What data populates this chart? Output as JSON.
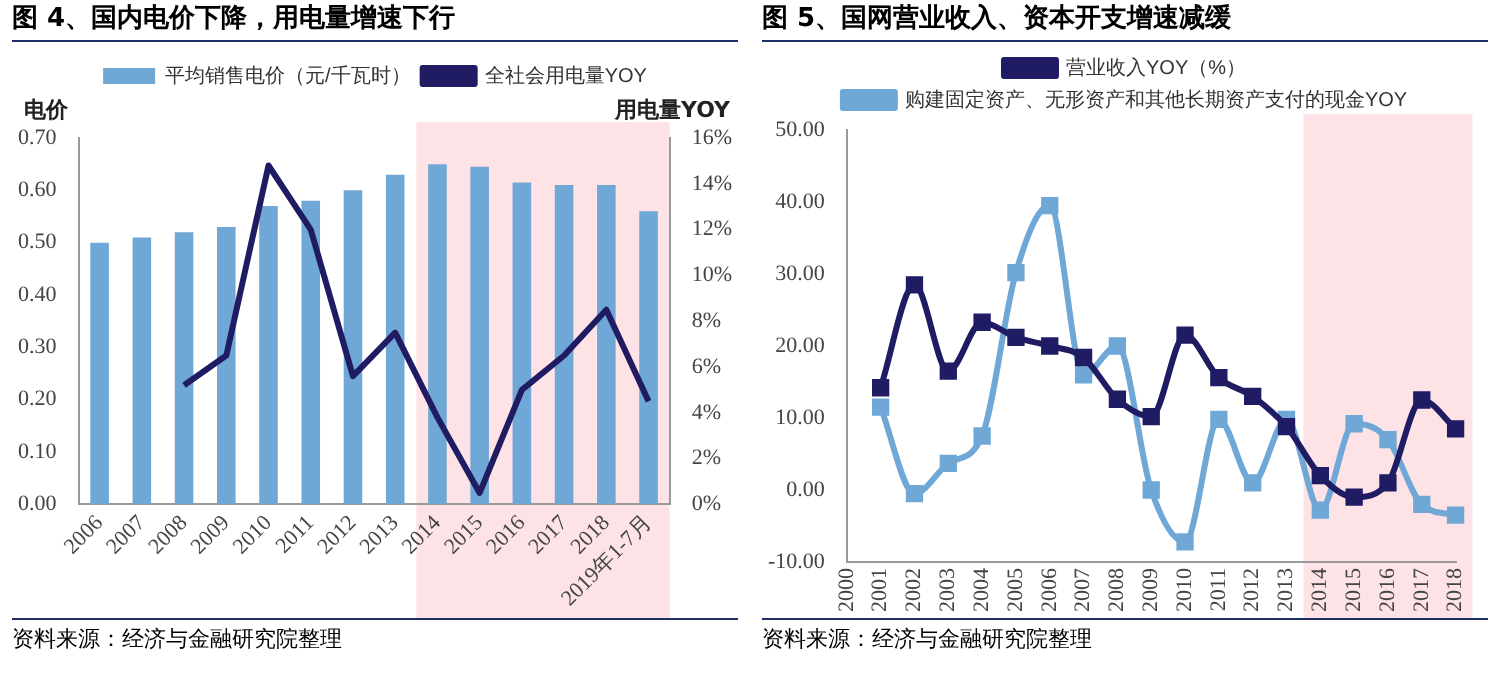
{
  "chart_data": [
    {
      "type": "bar",
      "title": "图 4、国内电价下降，用电量增速下行",
      "ylabel": "电价",
      "y2label": "用电量YOY",
      "categories": [
        "2006",
        "2007",
        "2008",
        "2009",
        "2010",
        "2011",
        "2012",
        "2013",
        "2014",
        "2015",
        "2016",
        "2017",
        "2018",
        "2019年1-7月"
      ],
      "series": [
        {
          "name": "平均销售电价（元/千瓦时）",
          "color": "#6fa8d6",
          "values": [
            0.5,
            0.51,
            0.52,
            0.53,
            0.57,
            0.58,
            0.6,
            0.63,
            0.65,
            0.645,
            0.615,
            0.61,
            0.61,
            0.56
          ]
        },
        {
          "name": "全社会用电量YOY",
          "type": "line",
          "axis": "y2",
          "color": "#201c64",
          "values": [
            null,
            null,
            5.2,
            6.5,
            14.8,
            12.0,
            5.6,
            7.5,
            3.8,
            0.5,
            5.0,
            6.5,
            8.5,
            4.5
          ]
        }
      ],
      "ylim": [
        0,
        0.7
      ],
      "yticks": [
        {
          "value": 0,
          "label": "0.00"
        },
        {
          "value": 0.1,
          "label": "0.10"
        },
        {
          "value": 0.2,
          "label": "0.20"
        },
        {
          "value": 0.3,
          "label": "0.30"
        },
        {
          "value": 0.4,
          "label": "0.40"
        },
        {
          "value": 0.5,
          "label": "0.50"
        },
        {
          "value": 0.6,
          "label": "0.60"
        },
        {
          "value": 0.7,
          "label": "0.70"
        }
      ],
      "y2lim": [
        0,
        16
      ],
      "y2ticks": [
        {
          "value": 0,
          "label": "0%"
        },
        {
          "value": 2,
          "label": "2%"
        },
        {
          "value": 4,
          "label": "4%"
        },
        {
          "value": 6,
          "label": "6%"
        },
        {
          "value": 8,
          "label": "8%"
        },
        {
          "value": 10,
          "label": "10%"
        },
        {
          "value": 12,
          "label": "12%"
        },
        {
          "value": 14,
          "label": "14%"
        },
        {
          "value": 16,
          "label": "16%"
        }
      ],
      "bands": [
        {
          "axis": "x",
          "from": "2014",
          "to": "2019年1-7月",
          "color": "#fde3e6"
        }
      ],
      "marker": "none",
      "grid": false,
      "legend": "top",
      "annotations": [
        "资料来源：经济与金融研究院整理"
      ]
    },
    {
      "type": "line",
      "title": "图 5、国网营业收入、资本开支增速减缓",
      "categories": [
        "2000",
        "2001",
        "2002",
        "2003",
        "2004",
        "2005",
        "2006",
        "2007",
        "2008",
        "2009",
        "2010",
        "2011",
        "2012",
        "2013",
        "2014",
        "2015",
        "2016",
        "2017",
        "2018"
      ],
      "series": [
        {
          "name": "营业收入YOY（%）",
          "color": "#201c64",
          "values": [
            null,
            14.2,
            28.5,
            16.5,
            23.3,
            21.2,
            20.0,
            18.4,
            12.6,
            10.2,
            21.5,
            15.6,
            13.0,
            8.8,
            2.0,
            -1.0,
            1.0,
            12.5,
            8.5
          ]
        },
        {
          "name": "购建固定资产、无形资产和其他长期资产支付的现金YOY",
          "color": "#6fa8d6",
          "values": [
            null,
            11.5,
            -0.5,
            3.7,
            7.5,
            30.2,
            39.5,
            16.0,
            20.0,
            0.0,
            -7.2,
            9.8,
            1.0,
            9.8,
            -2.8,
            9.2,
            7.0,
            -2.0,
            -3.5
          ]
        }
      ],
      "ylim": [
        -10,
        50
      ],
      "yticks": [
        {
          "value": -10,
          "label": "-10.00"
        },
        {
          "value": 0,
          "label": "0.00"
        },
        {
          "value": 10,
          "label": "10.00"
        },
        {
          "value": 20,
          "label": "20.00"
        },
        {
          "value": 30,
          "label": "30.00"
        },
        {
          "value": 40,
          "label": "40.00"
        },
        {
          "value": 50,
          "label": "50.00"
        }
      ],
      "bands": [
        {
          "axis": "x",
          "from": "2014",
          "to": "2018",
          "color": "#fde3e6"
        }
      ],
      "marker": "square",
      "grid": false,
      "legend": "top",
      "annotations": [
        "资料来源：经济与金融研究院整理"
      ]
    }
  ]
}
